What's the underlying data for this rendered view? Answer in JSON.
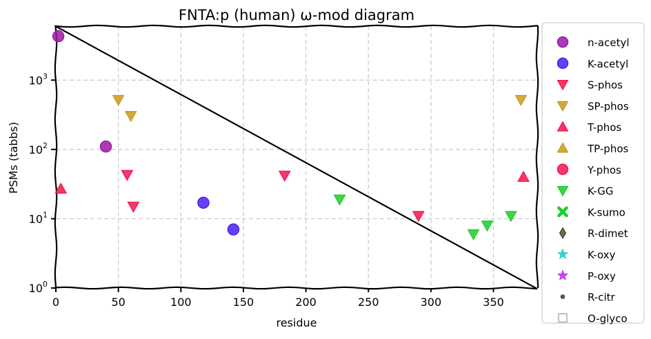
{
  "chart_data": {
    "type": "scatter",
    "title": "FNTA:p (human) ω-mod diagram",
    "xlabel": "residue",
    "ylabel": "PSMs (tabbs)",
    "xlim": [
      0,
      385
    ],
    "ylim": [
      1,
      6000
    ],
    "yscale": "log",
    "grid": true,
    "legend_position": "outside-right",
    "x_ticks": [
      0,
      50,
      100,
      150,
      200,
      250,
      300,
      350
    ],
    "y_ticks": [
      {
        "value": 1,
        "base": "10",
        "exp": "0"
      },
      {
        "value": 10,
        "base": "10",
        "exp": "1"
      },
      {
        "value": 100,
        "base": "10",
        "exp": "2"
      },
      {
        "value": 1000,
        "base": "10",
        "exp": "3"
      }
    ],
    "series": [
      {
        "name": "n-acetyl",
        "marker": "circle",
        "color": "#9b1aa6",
        "points": [
          {
            "x": 2,
            "y": 4300
          },
          {
            "x": 40,
            "y": 110
          }
        ]
      },
      {
        "name": "K-acetyl",
        "marker": "circle",
        "color": "#4b1ef2",
        "points": [
          {
            "x": 118,
            "y": 17
          },
          {
            "x": 142,
            "y": 7
          }
        ]
      },
      {
        "name": "S-phos",
        "marker": "triangle-down",
        "color": "#f2154f",
        "points": [
          {
            "x": 57,
            "y": 43
          },
          {
            "x": 62,
            "y": 15
          },
          {
            "x": 183,
            "y": 42
          },
          {
            "x": 290,
            "y": 11
          }
        ]
      },
      {
        "name": "SP-phos",
        "marker": "triangle-down",
        "color": "#c99a1c",
        "points": [
          {
            "x": 50,
            "y": 520
          },
          {
            "x": 60,
            "y": 305
          },
          {
            "x": 372,
            "y": 520
          }
        ]
      },
      {
        "name": "T-phos",
        "marker": "triangle-up",
        "color": "#f2154f",
        "points": [
          {
            "x": 4,
            "y": 27
          },
          {
            "x": 374,
            "y": 40
          }
        ]
      },
      {
        "name": "TP-phos",
        "marker": "triangle-up",
        "color": "#c99a1c",
        "points": []
      },
      {
        "name": "Y-phos",
        "marker": "circle",
        "color": "#f2154f",
        "points": []
      },
      {
        "name": "K-GG",
        "marker": "triangle-down",
        "color": "#1fcc2a",
        "points": [
          {
            "x": 227,
            "y": 19
          },
          {
            "x": 334,
            "y": 6
          },
          {
            "x": 345,
            "y": 8
          },
          {
            "x": 364,
            "y": 11
          }
        ]
      },
      {
        "name": "K-sumo",
        "marker": "x",
        "color": "#1fcc2a",
        "points": []
      },
      {
        "name": "R-dimet",
        "marker": "diamond",
        "color": "#54591c",
        "points": []
      },
      {
        "name": "K-oxy",
        "marker": "star",
        "color": "#17c9c9",
        "points": []
      },
      {
        "name": "P-oxy",
        "marker": "star",
        "color": "#b62ee6",
        "points": []
      },
      {
        "name": "R-citr",
        "marker": "dot",
        "color": "#555555",
        "points": []
      },
      {
        "name": "O-glyco",
        "marker": "square-open",
        "color": "#999999",
        "points": []
      }
    ]
  }
}
